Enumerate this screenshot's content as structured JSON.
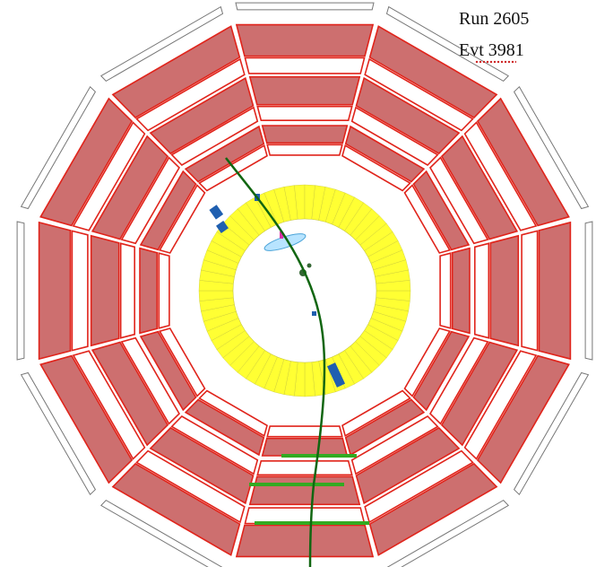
{
  "run_label": "Run 2605",
  "event_label": "Evt 3981",
  "colors": {
    "chamber_fill": "#cd6f6f",
    "chamber_stroke": "#e0241b",
    "outer_frame_stroke": "#777777",
    "calorimeter_fill": "#ffff33",
    "calorimeter_stroke": "#c9c93a",
    "track": "#116611",
    "energy_deposit": "#1f5fb0",
    "hit_segment": "#33aa22"
  },
  "icons": [
    "track-line",
    "energy-deposit-block",
    "chamber-segment"
  ]
}
